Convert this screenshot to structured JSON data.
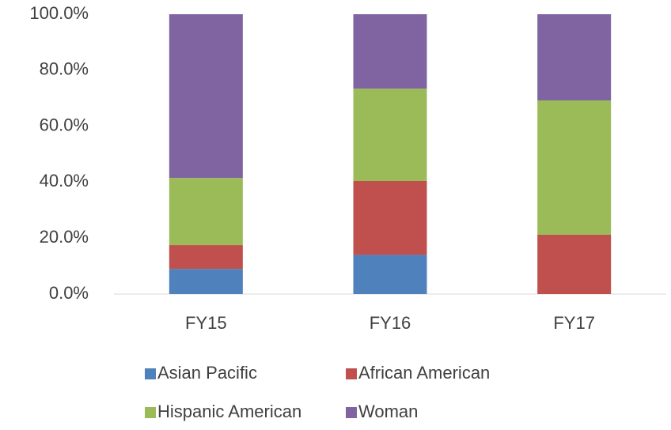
{
  "chart_data": {
    "type": "stacked_bar",
    "categories": [
      "FY15",
      "FY16",
      "FY17"
    ],
    "series": [
      {
        "name": "Asian Pacific",
        "color": "#4f81bd",
        "values": [
          9.0,
          14.0,
          0
        ]
      },
      {
        "name": "African American",
        "color": "#c0504d",
        "values": [
          8.5,
          26.4,
          21.2
        ]
      },
      {
        "name": "Hispanic American",
        "color": "#9bbb59",
        "values": [
          24.0,
          33.0,
          48.0
        ]
      },
      {
        "name": "Woman",
        "color": "#8064a2",
        "values": [
          58.5,
          26.6,
          30.8
        ]
      }
    ],
    "ylim": [
      0,
      100
    ],
    "yticks": [
      {
        "value": 0,
        "label": "0.0%"
      },
      {
        "value": 20,
        "label": "20.0%"
      },
      {
        "value": 40,
        "label": "40.0%"
      },
      {
        "value": 60,
        "label": "60.0%"
      },
      {
        "value": 80,
        "label": "80.0%"
      },
      {
        "value": 100,
        "label": "100.0%"
      }
    ],
    "grid": false,
    "legend": "bottom"
  }
}
